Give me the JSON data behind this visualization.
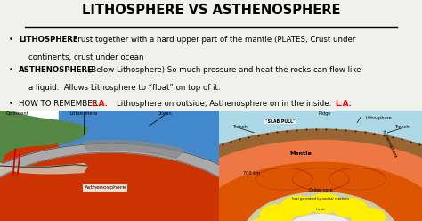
{
  "bg_color": "#f0f0ec",
  "title": "LITHOSPHERE VS ASTHENOSPHERE",
  "title_fontsize": 10.5,
  "text_fontsize": 6.2,
  "bullet1_bold": "LITHOSPHERE",
  "bullet1_rest": " - crust together with a hard upper part of the mantle (PLATES, Crust under",
  "bullet1_rest2": "    continents, crust under ocean",
  "bullet2_bold": "ASTHENOSPHERE",
  "bullet2_rest": " – (Below Lithosphere) So much pressure and heat the rocks can flow like",
  "bullet2_rest2": "    a liquid.  Allows Lithosphere to “float” on top of it.",
  "bullet3_pre": "HOW TO REMEMBER:  ",
  "bullet3_red1": "L.A.",
  "bullet3_mid": "    Lithosphere on outside, Asthenosphere on in the inside.  ",
  "bullet3_red2": "L.A.",
  "left_bg": "#ffffff",
  "right_bg": "#add8e6",
  "left_asthenosphere": "#cc3300",
  "left_mantle_core": "#ff6600",
  "left_ocean": "#4488cc",
  "left_continent": "#558844",
  "left_crust_gray": "#aaaaaa",
  "left_crust_dark": "#888888",
  "left_ocean_blue": "#3366aa",
  "right_litho_color": "#996633",
  "right_asthen_color": "#ee7744",
  "right_mantle_color": "#dd5500",
  "right_outer_core_gray": "#ccccaa",
  "right_yellow": "#ffee00",
  "right_inner_white": "#eeeeee"
}
